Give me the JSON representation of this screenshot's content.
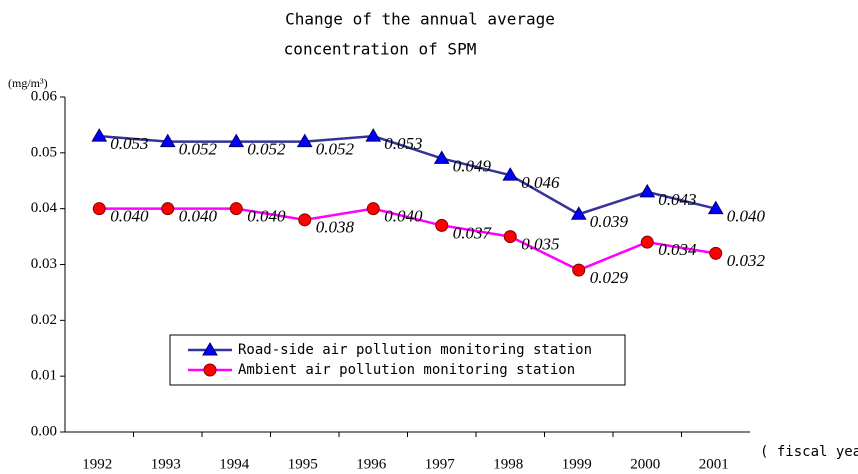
{
  "chart_data": {
    "type": "line",
    "title_lines": [
      "Change of the annual average",
      "concentration of SPM"
    ],
    "y_unit_label": "(mg/m³)",
    "x_axis_label": "( fiscal year )",
    "categories": [
      "1992",
      "1993",
      "1994",
      "1995",
      "1996",
      "1997",
      "1998",
      "1999",
      "2000",
      "2001"
    ],
    "ylim": [
      0,
      0.06
    ],
    "yticks": [
      {
        "value": 0,
        "label": "0.00"
      },
      0.01,
      0.02,
      0.03,
      0.04,
      0.05,
      0.06
    ],
    "legend": "bottom-center",
    "series": [
      {
        "name": "Road-side air pollution monitoring station",
        "color": "#333399",
        "marker": "triangle",
        "marker_color": "#0000ff",
        "values": [
          0.053,
          0.052,
          0.052,
          0.052,
          0.053,
          0.049,
          0.046,
          0.039,
          0.043,
          0.04
        ],
        "value_labels": [
          "0.053",
          "0.052",
          "0.052",
          "0.052",
          "0.053",
          "0.049",
          "0.046",
          "0.039",
          "0.043",
          "0.040"
        ]
      },
      {
        "name": "Ambient air pollution monitoring station",
        "color": "#ff00ff",
        "marker": "circle",
        "marker_color": "#ff0000",
        "values": [
          0.04,
          0.04,
          0.04,
          0.038,
          0.04,
          0.037,
          0.035,
          0.029,
          0.034,
          0.032
        ],
        "value_labels": [
          "0.040",
          "0.040",
          "0.040",
          "0.038",
          "0.040",
          "0.037",
          "0.035",
          "0.029",
          "0.034",
          "0.032"
        ]
      }
    ]
  }
}
